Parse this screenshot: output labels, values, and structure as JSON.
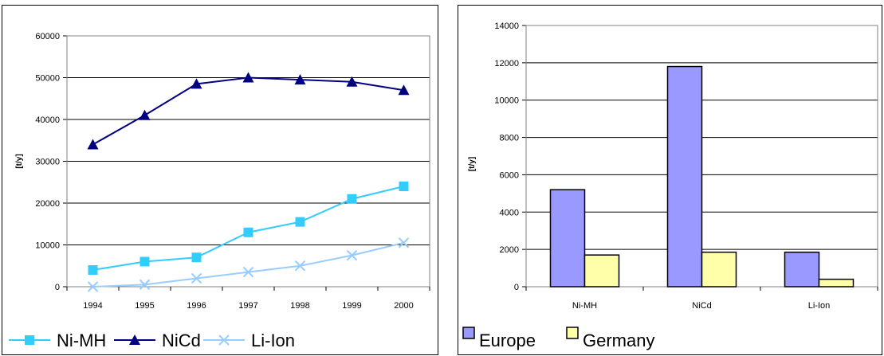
{
  "chart_data": [
    {
      "type": "line",
      "title": "",
      "xlabel": "",
      "ylabel": "[t/y]",
      "x": [
        "1994",
        "1995",
        "1996",
        "1997",
        "1998",
        "1999",
        "2000"
      ],
      "ylim": [
        0,
        60000
      ],
      "yticks": [
        "0",
        "10000",
        "20000",
        "30000",
        "40000",
        "50000",
        "60000"
      ],
      "grid": true,
      "legend_position": "bottom",
      "series": [
        {
          "name": "Ni-MH",
          "marker": "square",
          "color": "#33ccff",
          "values": [
            4000,
            6000,
            7000,
            13000,
            15500,
            21000,
            24000
          ]
        },
        {
          "name": "NiCd",
          "marker": "triangle",
          "color": "#000080",
          "values": [
            34000,
            41000,
            48500,
            50000,
            49500,
            49000,
            47000
          ]
        },
        {
          "name": "Li-Ion",
          "marker": "x",
          "color": "#99ccff",
          "values": [
            0,
            500,
            2000,
            3500,
            5000,
            7500,
            10500
          ]
        }
      ]
    },
    {
      "type": "bar",
      "title": "",
      "xlabel": "",
      "ylabel": "[t/y]",
      "categories": [
        "Ni-MH",
        "NiCd",
        "Li-Ion"
      ],
      "ylim": [
        0,
        14000
      ],
      "yticks": [
        "0",
        "2000",
        "4000",
        "6000",
        "8000",
        "10000",
        "12000",
        "14000"
      ],
      "grid": true,
      "legend_position": "bottom",
      "series": [
        {
          "name": "Europe",
          "color": "#9999ff",
          "values": [
            5200,
            11800,
            1850
          ]
        },
        {
          "name": "Germany",
          "color": "#ffffaa",
          "values": [
            1700,
            1850,
            400
          ]
        }
      ]
    }
  ]
}
